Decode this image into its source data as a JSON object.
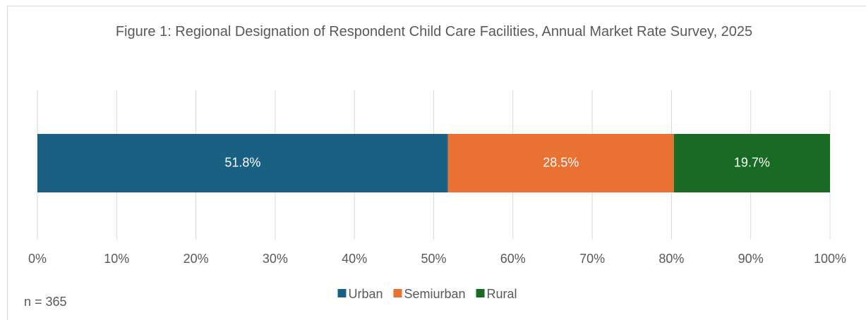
{
  "chart_data": {
    "type": "stacked_barh",
    "title": "Figure 1: Regional Designation of Respondent Child Care Facilities, Annual Market Rate Survey, 2025",
    "categories": [
      null
    ],
    "series": [
      {
        "name": "Urban",
        "color": "#1a6082",
        "values": [
          51.8
        ],
        "value_labels": [
          "51.8%"
        ]
      },
      {
        "name": "Semiurban",
        "color": "#e97132",
        "values": [
          28.5
        ],
        "value_labels": [
          "28.5%"
        ]
      },
      {
        "name": "Rural",
        "color": "#196b24",
        "values": [
          19.7
        ],
        "value_labels": [
          "19.7%"
        ]
      }
    ],
    "xlim": [
      0,
      100
    ],
    "xticks": [
      {
        "value": 0,
        "label": "0%"
      },
      {
        "value": 10,
        "label": "10%"
      },
      {
        "value": 20,
        "label": "20%"
      },
      {
        "value": 30,
        "label": "30%"
      },
      {
        "value": 40,
        "label": "40%"
      },
      {
        "value": 50,
        "label": "50%"
      },
      {
        "value": 60,
        "label": "60%"
      },
      {
        "value": 70,
        "label": "70%"
      },
      {
        "value": 80,
        "label": "80%"
      },
      {
        "value": 90,
        "label": "90%"
      },
      {
        "value": 100,
        "label": "100%"
      }
    ],
    "grid": true,
    "legend": "bottom",
    "annotation": "n = 365"
  }
}
